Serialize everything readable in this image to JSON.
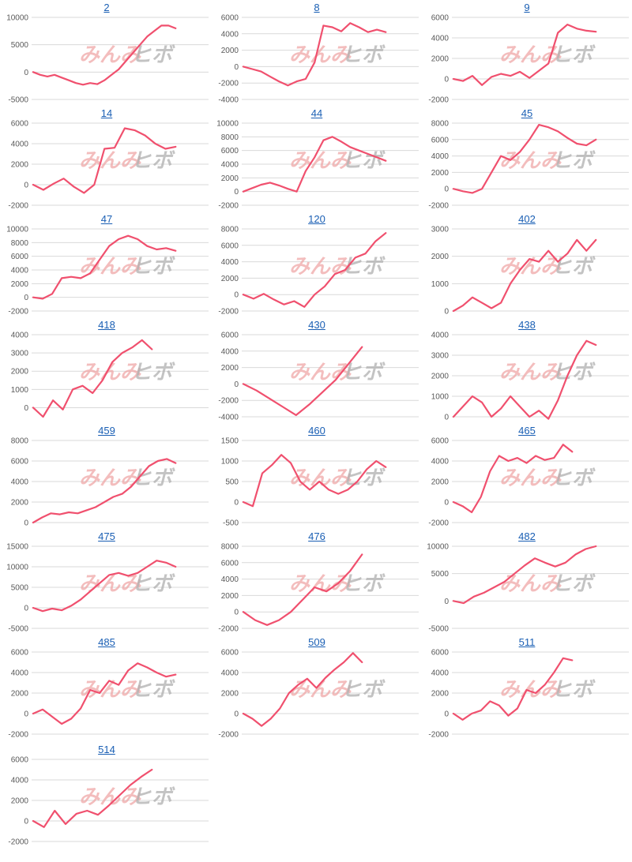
{
  "watermark": {
    "part1": "みんみ",
    "part2": "ヒボ"
  },
  "colors": {
    "line": "#f0506e",
    "title": "#1a5fb4",
    "grid": "#d9d9d9"
  },
  "chart_data": [
    {
      "type": "line",
      "title": "2",
      "yticks": [
        -5000,
        0,
        5000,
        10000
      ],
      "ylim": [
        -5000,
        10000
      ],
      "y": [
        0,
        -500,
        -800,
        -500,
        -1000,
        -1500,
        -2000,
        -2300,
        -2000,
        -2200,
        -1500,
        -500,
        500,
        2000,
        3500,
        5000,
        6500,
        7500,
        8500,
        8500,
        8000
      ]
    },
    {
      "type": "line",
      "title": "8",
      "yticks": [
        -4000,
        -2000,
        0,
        2000,
        4000,
        6000
      ],
      "ylim": [
        -4000,
        6000
      ],
      "y": [
        0,
        -300,
        -600,
        -1200,
        -1800,
        -2300,
        -1800,
        -1500,
        500,
        5000,
        4800,
        4300,
        5300,
        4800,
        4200,
        4500,
        4200
      ]
    },
    {
      "type": "line",
      "title": "9",
      "yticks": [
        -2000,
        0,
        2000,
        4000,
        6000
      ],
      "ylim": [
        -2000,
        6000
      ],
      "y": [
        0,
        -200,
        300,
        -600,
        200,
        500,
        300,
        700,
        100,
        800,
        1500,
        4500,
        5300,
        4900,
        4700,
        4600
      ]
    },
    {
      "type": "line",
      "title": "14",
      "yticks": [
        -2000,
        0,
        2000,
        4000,
        6000
      ],
      "ylim": [
        -2000,
        6000
      ],
      "y": [
        0,
        -500,
        100,
        600,
        -200,
        -800,
        0,
        3500,
        3600,
        5500,
        5300,
        4800,
        4000,
        3500,
        3700
      ]
    },
    {
      "type": "line",
      "title": "44",
      "yticks": [
        -2000,
        0,
        2000,
        4000,
        6000,
        8000,
        10000
      ],
      "ylim": [
        -2000,
        10000
      ],
      "y": [
        0,
        500,
        1000,
        1300,
        900,
        400,
        0,
        3000,
        5000,
        7500,
        8000,
        7300,
        6500,
        6000,
        5500,
        5000,
        4500
      ]
    },
    {
      "type": "line",
      "title": "45",
      "yticks": [
        -2000,
        0,
        2000,
        4000,
        6000,
        8000
      ],
      "ylim": [
        -2000,
        8000
      ],
      "y": [
        0,
        -300,
        -500,
        0,
        2000,
        4000,
        3500,
        4500,
        6000,
        7800,
        7500,
        7000,
        6200,
        5500,
        5300,
        6000
      ]
    },
    {
      "type": "line",
      "title": "47",
      "yticks": [
        -2000,
        0,
        2000,
        4000,
        6000,
        8000,
        10000
      ],
      "ylim": [
        -2000,
        10000
      ],
      "y": [
        0,
        -200,
        500,
        2800,
        3000,
        2800,
        3500,
        5500,
        7500,
        8500,
        9000,
        8500,
        7500,
        7000,
        7200,
        6800
      ]
    },
    {
      "type": "line",
      "title": "120",
      "yticks": [
        -2000,
        0,
        2000,
        4000,
        6000,
        8000
      ],
      "ylim": [
        -2000,
        8000
      ],
      "y": [
        0,
        -500,
        100,
        -600,
        -1200,
        -800,
        -1500,
        0,
        1000,
        2500,
        3000,
        4500,
        5000,
        6500,
        7500
      ]
    },
    {
      "type": "line",
      "title": "402",
      "yticks": [
        0,
        1000,
        2000,
        3000
      ],
      "ylim": [
        0,
        3000
      ],
      "y": [
        0,
        200,
        500,
        300,
        100,
        300,
        1000,
        1500,
        1900,
        1800,
        2200,
        1800,
        2100,
        2600,
        2200,
        2600
      ]
    },
    {
      "type": "line",
      "title": "418",
      "yticks": [
        0,
        1000,
        2000,
        3000,
        4000
      ],
      "ylim": [
        -500,
        4000
      ],
      "y": [
        0,
        -500,
        400,
        -100,
        1000,
        1200,
        800,
        1500,
        2500,
        3000,
        3300,
        3700,
        3200
      ]
    },
    {
      "type": "line",
      "title": "430",
      "yticks": [
        -4000,
        -2000,
        0,
        2000,
        4000,
        6000
      ],
      "ylim": [
        -4000,
        6000
      ],
      "y": [
        0,
        -800,
        -1800,
        -2800,
        -3800,
        -2500,
        -1000,
        500,
        2500,
        4500
      ]
    },
    {
      "type": "line",
      "title": "438",
      "yticks": [
        0,
        1000,
        2000,
        3000,
        4000
      ],
      "ylim": [
        0,
        4000
      ],
      "y": [
        0,
        500,
        1000,
        700,
        0,
        400,
        1000,
        500,
        0,
        300,
        -100,
        800,
        2000,
        3000,
        3700,
        3500
      ]
    },
    {
      "type": "line",
      "title": "459",
      "yticks": [
        0,
        2000,
        4000,
        6000,
        8000
      ],
      "ylim": [
        0,
        8000
      ],
      "y": [
        0,
        500,
        900,
        800,
        1000,
        900,
        1200,
        1500,
        2000,
        2500,
        2800,
        3500,
        4500,
        5500,
        6000,
        6200,
        5800
      ]
    },
    {
      "type": "line",
      "title": "460",
      "yticks": [
        -500,
        0,
        500,
        1000,
        1500
      ],
      "ylim": [
        -500,
        1500
      ],
      "y": [
        0,
        -100,
        700,
        900,
        1150,
        950,
        500,
        300,
        500,
        300,
        200,
        300,
        500,
        800,
        1000,
        850
      ]
    },
    {
      "type": "line",
      "title": "465",
      "yticks": [
        -2000,
        0,
        2000,
        4000,
        6000
      ],
      "ylim": [
        -2000,
        6000
      ],
      "y": [
        0,
        -400,
        -1000,
        500,
        3000,
        4500,
        4000,
        4300,
        3800,
        4500,
        4100,
        4300,
        5600,
        4900
      ]
    },
    {
      "type": "line",
      "title": "475",
      "yticks": [
        -5000,
        0,
        5000,
        10000,
        15000
      ],
      "ylim": [
        -5000,
        15000
      ],
      "y": [
        0,
        -800,
        -200,
        -600,
        500,
        2000,
        4000,
        6000,
        8000,
        8500,
        7800,
        8500,
        10000,
        11500,
        11000,
        10000
      ]
    },
    {
      "type": "line",
      "title": "476",
      "yticks": [
        -2000,
        0,
        2000,
        4000,
        6000,
        8000
      ],
      "ylim": [
        -2000,
        8000
      ],
      "y": [
        0,
        -1000,
        -1600,
        -1000,
        0,
        1500,
        3000,
        2500,
        3500,
        5000,
        7000
      ]
    },
    {
      "type": "line",
      "title": "482",
      "yticks": [
        -5000,
        0,
        5000,
        10000
      ],
      "ylim": [
        -5000,
        10000
      ],
      "y": [
        0,
        -400,
        800,
        1500,
        2500,
        3500,
        5000,
        6500,
        7800,
        7000,
        6300,
        7000,
        8500,
        9500,
        10000
      ]
    },
    {
      "type": "line",
      "title": "485",
      "yticks": [
        -2000,
        0,
        2000,
        4000,
        6000
      ],
      "ylim": [
        -2000,
        6000
      ],
      "y": [
        0,
        400,
        -300,
        -1000,
        -500,
        500,
        2300,
        2000,
        3200,
        2800,
        4200,
        4900,
        4500,
        4000,
        3600,
        3800
      ]
    },
    {
      "type": "line",
      "title": "509",
      "yticks": [
        -2000,
        0,
        2000,
        4000,
        6000
      ],
      "ylim": [
        -2000,
        6000
      ],
      "y": [
        0,
        -500,
        -1200,
        -500,
        500,
        2000,
        2800,
        3400,
        2500,
        3500,
        4300,
        5000,
        5900,
        5000
      ]
    },
    {
      "type": "line",
      "title": "511",
      "yticks": [
        -2000,
        0,
        2000,
        4000,
        6000
      ],
      "ylim": [
        -2000,
        6000
      ],
      "y": [
        0,
        -600,
        0,
        300,
        1200,
        800,
        -200,
        500,
        2300,
        2000,
        2800,
        4000,
        5400,
        5200
      ]
    },
    {
      "type": "line",
      "title": "514",
      "yticks": [
        -2000,
        0,
        2000,
        4000,
        6000
      ],
      "ylim": [
        -2000,
        6000
      ],
      "y": [
        0,
        -600,
        1000,
        -300,
        700,
        1000,
        600,
        1500,
        2500,
        3500,
        4300,
        5000
      ]
    }
  ]
}
